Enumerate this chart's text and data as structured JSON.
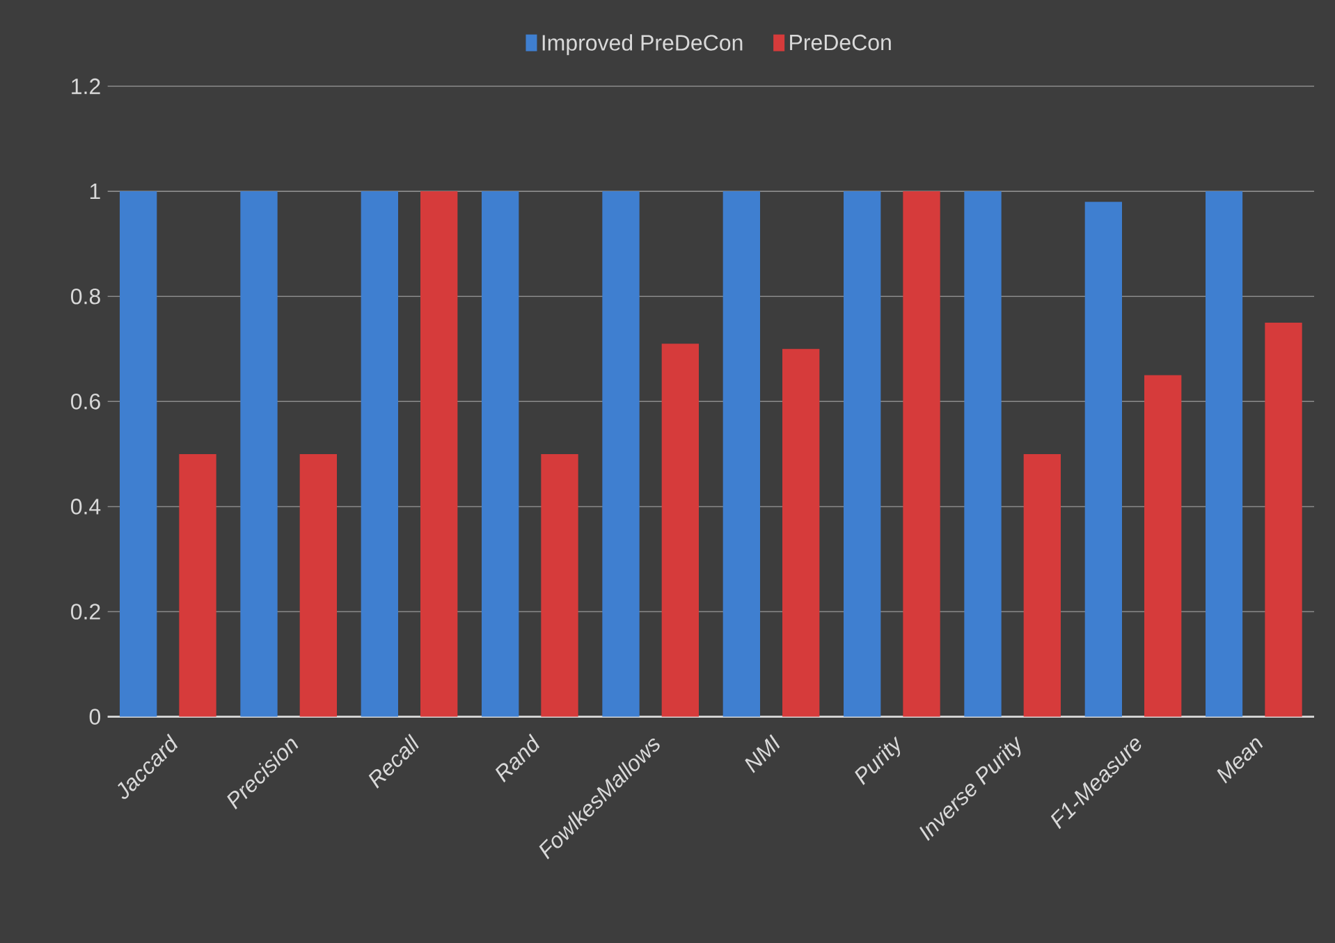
{
  "chart_data": {
    "type": "bar",
    "categories": [
      "Jaccard",
      "Precision",
      "Recall",
      "Rand",
      "FowlkesMallows",
      "NMI",
      "Purity",
      "Inverse Purity",
      "F1-Measure",
      "Mean"
    ],
    "series": [
      {
        "name": "Improved PreDeCon",
        "color": "#3f7fd0",
        "values": [
          1,
          1,
          1,
          1,
          1,
          1,
          1,
          1,
          0.98,
          1
        ]
      },
      {
        "name": "PreDeCon",
        "color": "#d63b3b",
        "values": [
          0.5,
          0.5,
          1,
          0.5,
          0.71,
          0.7,
          1,
          0.5,
          0.65,
          0.75
        ]
      }
    ],
    "ylim": [
      0,
      1.2
    ],
    "yticks": [
      0,
      0.2,
      0.4,
      0.6,
      0.8,
      1,
      1.2
    ],
    "grid": "y",
    "legend": "top"
  }
}
